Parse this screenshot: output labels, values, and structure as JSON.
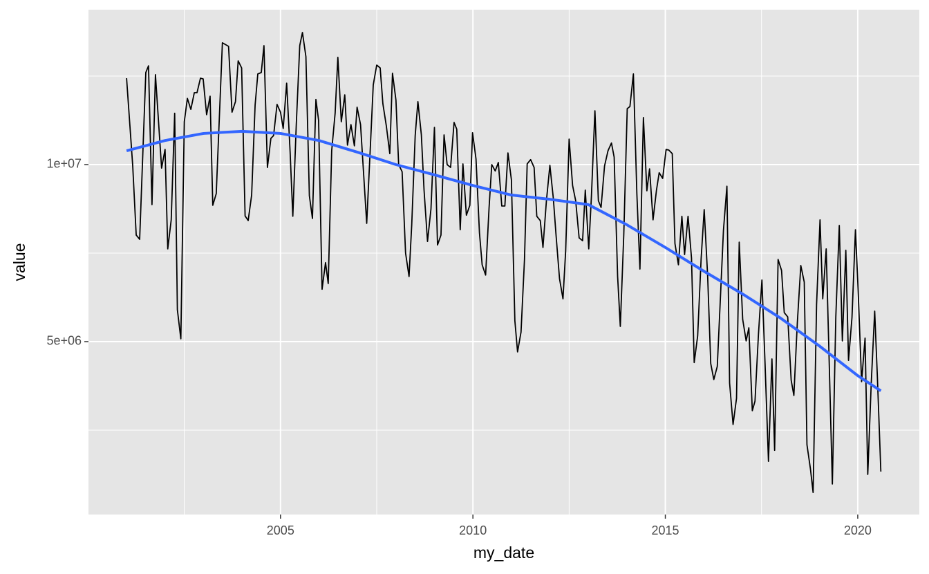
{
  "chart_data": {
    "type": "line",
    "x_label": "my_date",
    "y_label": "value",
    "xlim": [
      2000.01,
      2021.6
    ],
    "ylim": [
      117000,
      14375000
    ],
    "xticks": [
      2005,
      2010,
      2015,
      2020
    ],
    "xminor": [
      2002.5,
      2007.5,
      2012.5,
      2017.5
    ],
    "yticks": [
      {
        "value": 5000000,
        "label": "5e+06"
      },
      {
        "value": 10000000,
        "label": "1e+07"
      }
    ],
    "yminor": [
      2500000,
      7500000,
      12500000
    ],
    "grid": true,
    "background": "#e5e5e5",
    "series": [
      {
        "color": "#000000",
        "width": 1.8,
        "x": [
          2001.0,
          2001.16,
          2001.25,
          2001.34,
          2001.5,
          2001.57,
          2001.66,
          2001.75,
          2001.91,
          2002.0,
          2002.07,
          2002.16,
          2002.25,
          2002.32,
          2002.41,
          2002.5,
          2002.58,
          2002.67,
          2002.76,
          2002.83,
          2002.92,
          2002.99,
          2003.08,
          2003.17,
          2003.24,
          2003.33,
          2003.49,
          2003.65,
          2003.74,
          2003.83,
          2003.9,
          2003.99,
          2004.08,
          2004.16,
          2004.25,
          2004.34,
          2004.41,
          2004.5,
          2004.57,
          2004.66,
          2004.75,
          2004.82,
          2004.91,
          2005.0,
          2005.07,
          2005.16,
          2005.25,
          2005.32,
          2005.41,
          2005.5,
          2005.57,
          2005.66,
          2005.75,
          2005.83,
          2005.92,
          2005.99,
          2006.08,
          2006.17,
          2006.24,
          2006.33,
          2006.42,
          2006.49,
          2006.58,
          2006.67,
          2006.74,
          2006.83,
          2006.92,
          2006.99,
          2007.08,
          2007.24,
          2007.33,
          2007.41,
          2007.5,
          2007.59,
          2007.66,
          2007.75,
          2007.84,
          2007.91,
          2008.0,
          2008.07,
          2008.16,
          2008.25,
          2008.34,
          2008.41,
          2008.5,
          2008.57,
          2008.66,
          2008.73,
          2008.82,
          2008.91,
          2009.0,
          2009.08,
          2009.17,
          2009.25,
          2009.33,
          2009.42,
          2009.51,
          2009.58,
          2009.67,
          2009.74,
          2009.83,
          2009.92,
          2009.99,
          2010.08,
          2010.17,
          2010.24,
          2010.33,
          2010.42,
          2010.49,
          2010.58,
          2010.66,
          2010.75,
          2010.83,
          2010.91,
          2011.0,
          2011.09,
          2011.16,
          2011.25,
          2011.34,
          2011.41,
          2011.5,
          2011.59,
          2011.66,
          2011.75,
          2011.82,
          2011.91,
          2012.0,
          2012.09,
          2012.16,
          2012.25,
          2012.34,
          2012.41,
          2012.5,
          2012.59,
          2012.67,
          2012.76,
          2012.85,
          2012.92,
          2013.01,
          2013.08,
          2013.17,
          2013.26,
          2013.33,
          2013.42,
          2013.51,
          2013.6,
          2013.67,
          2013.76,
          2013.83,
          2013.92,
          2014.01,
          2014.08,
          2014.17,
          2014.26,
          2014.34,
          2014.43,
          2014.52,
          2014.59,
          2014.68,
          2014.77,
          2014.84,
          2014.93,
          2015.02,
          2015.09,
          2015.18,
          2015.25,
          2015.34,
          2015.43,
          2015.5,
          2015.59,
          2015.68,
          2015.75,
          2015.84,
          2015.93,
          2016.01,
          2016.1,
          2016.18,
          2016.26,
          2016.35,
          2016.44,
          2016.51,
          2016.6,
          2016.67,
          2016.76,
          2016.85,
          2016.92,
          2017.01,
          2017.1,
          2017.17,
          2017.26,
          2017.33,
          2017.42,
          2017.51,
          2017.59,
          2017.68,
          2017.77,
          2017.84,
          2017.93,
          2018.02,
          2018.09,
          2018.18,
          2018.27,
          2018.34,
          2018.43,
          2018.52,
          2018.61,
          2018.68,
          2018.77,
          2018.84,
          2018.93,
          2019.02,
          2019.09,
          2019.18,
          2019.27,
          2019.34,
          2019.43,
          2019.52,
          2019.6,
          2019.69,
          2019.76,
          2019.85,
          2019.94,
          2020.01,
          2020.1,
          2020.19,
          2020.26,
          2020.35,
          2020.44,
          2020.51,
          2020.6
        ],
        "values": [
          12440000,
          9960000,
          8010000,
          7890000,
          12600000,
          12790000,
          8870000,
          12540000,
          9900000,
          10430000,
          7620000,
          8440000,
          11450000,
          5900000,
          5080000,
          11210000,
          11870000,
          11560000,
          12030000,
          12030000,
          12440000,
          12420000,
          11410000,
          11930000,
          8850000,
          9180000,
          13440000,
          13340000,
          11480000,
          11780000,
          12930000,
          12730000,
          8550000,
          8420000,
          9140000,
          11680000,
          12560000,
          12600000,
          13360000,
          9920000,
          10740000,
          10820000,
          11700000,
          11480000,
          11020000,
          12300000,
          10350000,
          8540000,
          11130000,
          13360000,
          13730000,
          13050000,
          9120000,
          8480000,
          11840000,
          11250000,
          6480000,
          7230000,
          6640000,
          10390000,
          11460000,
          13030000,
          11210000,
          11970000,
          10550000,
          11130000,
          10530000,
          11620000,
          11130000,
          8340000,
          10390000,
          12250000,
          12810000,
          12730000,
          11720000,
          11090000,
          10310000,
          12580000,
          11820000,
          10000000,
          9800000,
          7500000,
          6840000,
          8300000,
          10820000,
          11780000,
          10840000,
          9280000,
          7830000,
          8750000,
          11050000,
          7730000,
          8010000,
          10840000,
          10000000,
          9920000,
          11190000,
          11000000,
          8160000,
          10020000,
          8570000,
          8850000,
          10900000,
          10160000,
          8070000,
          7170000,
          6880000,
          8790000,
          10000000,
          9820000,
          10060000,
          8830000,
          8830000,
          10330000,
          9570000,
          5590000,
          4710000,
          5270000,
          7320000,
          10020000,
          10140000,
          9920000,
          8540000,
          8420000,
          7660000,
          8980000,
          9980000,
          9040000,
          8010000,
          6780000,
          6210000,
          7560000,
          10720000,
          9410000,
          8980000,
          7930000,
          7850000,
          9280000,
          7620000,
          9120000,
          11520000,
          8980000,
          8790000,
          9960000,
          10390000,
          10610000,
          10210000,
          6840000,
          5430000,
          8010000,
          11580000,
          11640000,
          12560000,
          9180000,
          7050000,
          11330000,
          9260000,
          9880000,
          8440000,
          9280000,
          9770000,
          9610000,
          10430000,
          10410000,
          10310000,
          7770000,
          7170000,
          8540000,
          7460000,
          8540000,
          7360000,
          4410000,
          5160000,
          7340000,
          8730000,
          6840000,
          4380000,
          3930000,
          4300000,
          6450000,
          8140000,
          9390000,
          3830000,
          2660000,
          3400000,
          7810000,
          5630000,
          5020000,
          5390000,
          3050000,
          3320000,
          5210000,
          6740000,
          4410000,
          1620000,
          4510000,
          1930000,
          7320000,
          7010000,
          5820000,
          5700000,
          3910000,
          3480000,
          5530000,
          7150000,
          6680000,
          2090000,
          1410000,
          740000,
          6050000,
          8440000,
          6210000,
          7620000,
          3930000,
          980000,
          5700000,
          8280000,
          5020000,
          7580000,
          4470000,
          5680000,
          8160000,
          6450000,
          3870000,
          5100000,
          1250000,
          3810000,
          5860000,
          4000000,
          1330000
        ]
      },
      {
        "color": "#3366ff",
        "width": 4,
        "x": [
          2001,
          2002,
          2003,
          2004,
          2005,
          2006,
          2007,
          2008,
          2009,
          2010,
          2011,
          2012,
          2013,
          2014,
          2015,
          2016,
          2017,
          2018,
          2019,
          2020,
          2020.6
        ],
        "values": [
          10390000,
          10680000,
          10880000,
          10940000,
          10880000,
          10680000,
          10350000,
          10000000,
          9710000,
          9410000,
          9140000,
          9020000,
          8870000,
          8300000,
          7660000,
          6990000,
          6350000,
          5660000,
          4880000,
          4040000,
          3610000
        ]
      }
    ]
  }
}
